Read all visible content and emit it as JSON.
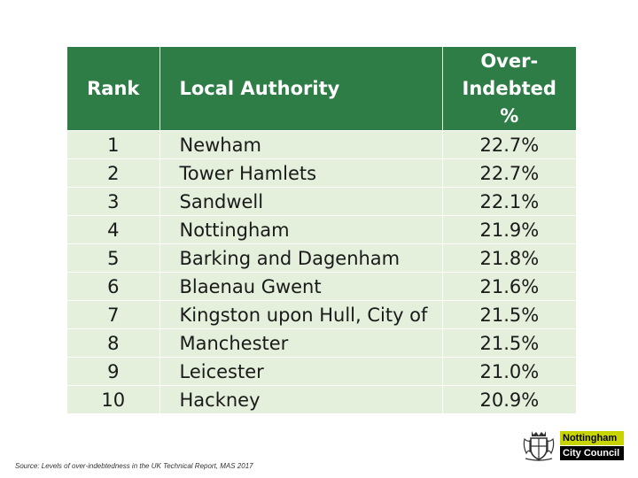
{
  "table": {
    "headers": {
      "rank": "Rank",
      "authority": "Local Authority",
      "pct_line1": "Over-",
      "pct_line2": "Indebted",
      "pct_line3": "%"
    },
    "rows": [
      {
        "rank": "1",
        "authority": "Newham",
        "pct": "22.7%"
      },
      {
        "rank": "2",
        "authority": "Tower Hamlets",
        "pct": "22.7%"
      },
      {
        "rank": "3",
        "authority": "Sandwell",
        "pct": "22.1%"
      },
      {
        "rank": "4",
        "authority": "Nottingham",
        "pct": "21.9%"
      },
      {
        "rank": "5",
        "authority": "Barking and Dagenham",
        "pct": "21.8%"
      },
      {
        "rank": "6",
        "authority": "Blaenau Gwent",
        "pct": "21.6%"
      },
      {
        "rank": "7",
        "authority": "Kingston upon Hull, City of",
        "pct": "21.5%"
      },
      {
        "rank": "8",
        "authority": "Manchester",
        "pct": "21.5%"
      },
      {
        "rank": "9",
        "authority": "Leicester",
        "pct": "21.0%"
      },
      {
        "rank": "10",
        "authority": "Hackney",
        "pct": "20.9%"
      }
    ]
  },
  "source": "Source: Levels of over-indebtedness in the UK Technical Report, MAS 2017",
  "logo": {
    "line1": "Nottingham",
    "line2": "City Council",
    "icon": "city-crest-icon"
  },
  "colors": {
    "header_green": "#2e7d46",
    "row_green": "#e4efdc",
    "logo_lime": "#c8d400"
  }
}
